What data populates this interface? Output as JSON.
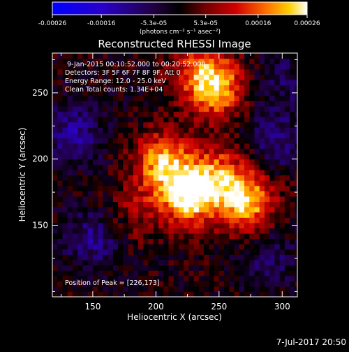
{
  "colorbar": {
    "ticks": [
      "-0.00026",
      "-0.00016",
      "-5.3e-05",
      "5.3e-05",
      "0.00016",
      "0.00026"
    ],
    "tick_values": [
      -0.00026,
      -0.00016,
      -5.3e-05,
      5.3e-05,
      0.00016,
      0.00026
    ],
    "range": [
      -0.00026,
      0.00026
    ],
    "colormap": "blue-black-red-yellow-white",
    "units": "(photons cm⁻² s⁻¹ asec⁻²)"
  },
  "chart_data": {
    "type": "heatmap",
    "title": "Reconstructed RHESSI Image",
    "xlabel": "Heliocentric X (arcsec)",
    "ylabel": "Heliocentric Y (arcsec)",
    "xlim": [
      118,
      312
    ],
    "ylim": [
      96,
      280
    ],
    "xticks": [
      150,
      200,
      250,
      300
    ],
    "yticks": [
      150,
      200,
      250
    ],
    "annotations": [
      "9-Jan-2015 00:10:52.000 to 00:20:52.000",
      "Detectors: 3F 5F 6F 7F 8F 9F, Att 0",
      "Energy Range: 12.0 - 25.0 keV",
      "Clean     Total counts: 1.34E+04"
    ],
    "peak_label": "Position of Peak = [226,173]",
    "peak": [
      226,
      173
    ],
    "sources": [
      {
        "x": 226,
        "y": 173,
        "intensity": 0.00026
      },
      {
        "x": 272,
        "y": 168,
        "intensity": 0.00022
      },
      {
        "x": 205,
        "y": 198,
        "intensity": 0.0002
      },
      {
        "x": 250,
        "y": 188,
        "intensity": 0.00014
      },
      {
        "x": 248,
        "y": 254,
        "intensity": 0.00019
      },
      {
        "x": 235,
        "y": 266,
        "intensity": 0.00012
      },
      {
        "x": 182,
        "y": 160,
        "intensity": 7e-05
      }
    ],
    "negative_regions": [
      {
        "x": 135,
        "y": 220,
        "intensity": -0.00011
      },
      {
        "x": 150,
        "y": 140,
        "intensity": -0.0001
      },
      {
        "x": 295,
        "y": 215,
        "intensity": -9e-05
      },
      {
        "x": 290,
        "y": 125,
        "intensity": -7e-05
      },
      {
        "x": 300,
        "y": 260,
        "intensity": -6e-05
      }
    ]
  },
  "footer": {
    "date": "7-Jul-2017 20:50"
  }
}
